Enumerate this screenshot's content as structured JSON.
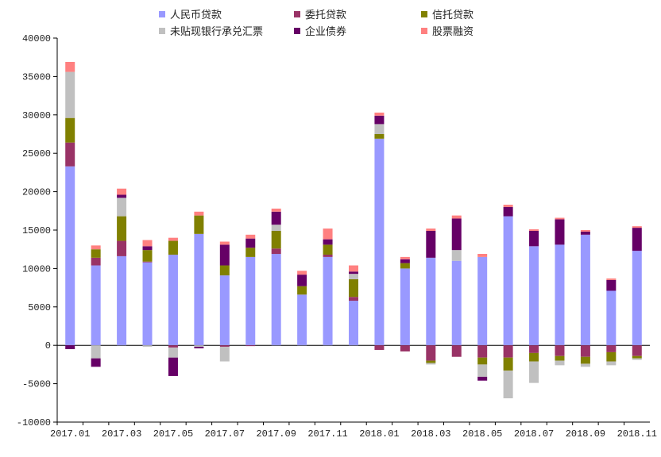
{
  "chart_data": {
    "type": "bar",
    "stacked": true,
    "legend_position": "top",
    "grid": false,
    "ylim": [
      -10000,
      40000
    ],
    "y_ticks": [
      "-10000",
      "-5000",
      "0",
      "5000",
      "10000",
      "15000",
      "20000",
      "25000",
      "30000",
      "35000",
      "40000"
    ],
    "x_tick_labels": [
      "2017.01",
      "2017.03",
      "2017.05",
      "2017.07",
      "2017.09",
      "2017.11",
      "2018.01",
      "2018.03",
      "2018.05",
      "2018.07",
      "2018.09",
      "2018.11"
    ],
    "categories": [
      "2017.01",
      "2017.02",
      "2017.03",
      "2017.04",
      "2017.05",
      "2017.06",
      "2017.07",
      "2017.08",
      "2017.09",
      "2017.10",
      "2017.11",
      "2017.12",
      "2018.01",
      "2018.02",
      "2018.03",
      "2018.04",
      "2018.05",
      "2018.06",
      "2018.07",
      "2018.08",
      "2018.09",
      "2018.10",
      "2018.11"
    ],
    "series": [
      {
        "name": "人民币贷款",
        "color": "#9999ff",
        "values": [
          23300,
          10400,
          11600,
          10800,
          11800,
          14500,
          9100,
          11500,
          11900,
          6600,
          11500,
          5800,
          26900,
          10000,
          11400,
          11000,
          11500,
          16800,
          12900,
          13100,
          14400,
          7100,
          12300
        ]
      },
      {
        "name": "委托贷款",
        "color": "#993366",
        "values": [
          3100,
          1000,
          2000,
          100,
          -300,
          0,
          -200,
          -100,
          700,
          0,
          300,
          500,
          -600,
          -800,
          -2000,
          -1500,
          -1600,
          -1600,
          -1000,
          -1400,
          -1500,
          -900,
          -1400
        ]
      },
      {
        "name": "信托贷款",
        "color": "#808000",
        "values": [
          3200,
          1100,
          3200,
          1500,
          1800,
          2400,
          1300,
          1200,
          2300,
          1100,
          1300,
          2300,
          600,
          700,
          -300,
          0,
          -900,
          -1700,
          -1100,
          -600,
          -900,
          -1200,
          -300
        ]
      },
      {
        "name": "未贴现银行承兑汇票",
        "color": "#c0c0c0",
        "values": [
          6000,
          -1700,
          2400,
          -200,
          -1300,
          -200,
          -1900,
          0,
          800,
          0,
          0,
          700,
          1300,
          0,
          -200,
          1400,
          -1600,
          -3600,
          -2800,
          -600,
          -400,
          -500,
          -200
        ]
      },
      {
        "name": "企业债券",
        "color": "#660066",
        "values": [
          -500,
          -1100,
          400,
          500,
          -2400,
          -200,
          2700,
          1200,
          1700,
          1500,
          700,
          300,
          1100,
          500,
          3500,
          4100,
          -500,
          1200,
          2000,
          3300,
          400,
          1400,
          3000
        ]
      },
      {
        "name": "股票融资",
        "color": "#ff8080",
        "values": [
          1300,
          500,
          800,
          800,
          400,
          500,
          400,
          500,
          400,
          500,
          1400,
          800,
          400,
          300,
          300,
          400,
          400,
          300,
          200,
          200,
          200,
          200,
          200
        ]
      }
    ]
  }
}
